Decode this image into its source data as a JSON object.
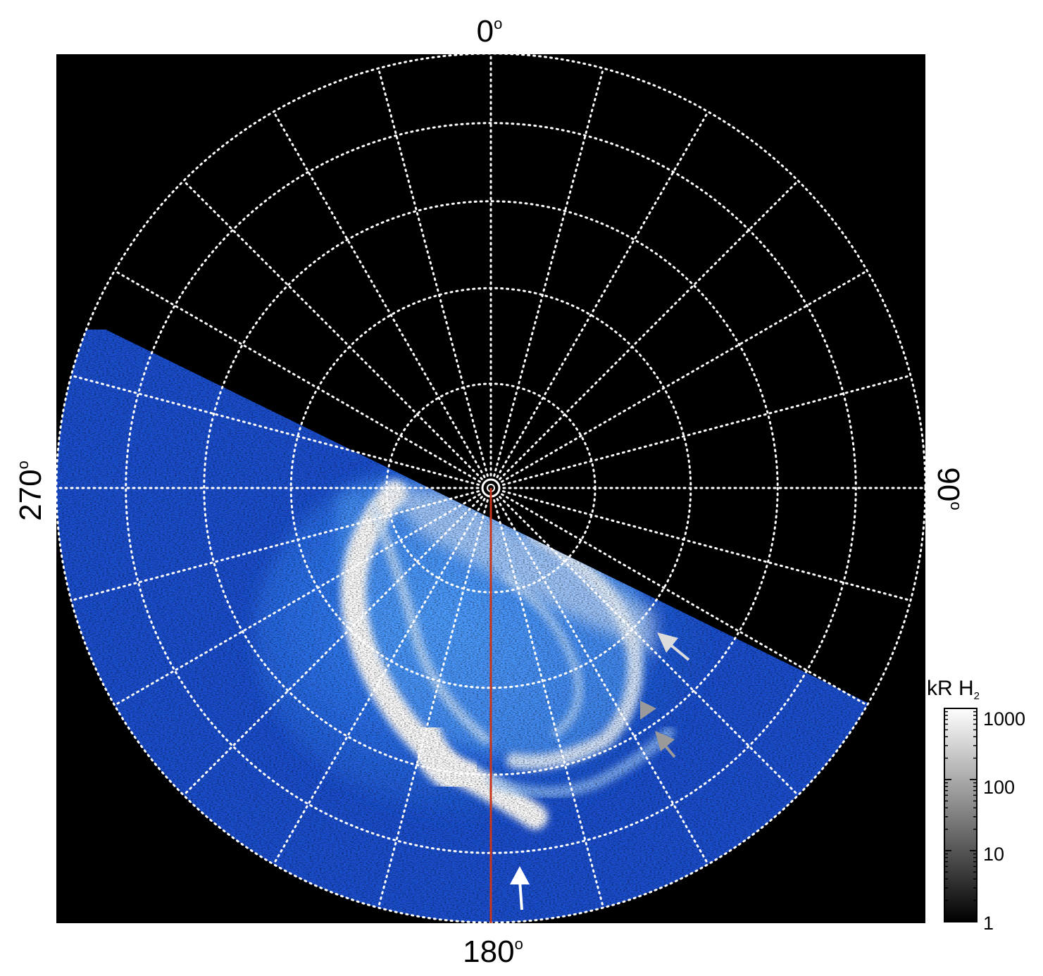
{
  "figure": {
    "labels": {
      "top": "0",
      "right": "90",
      "bottom": "180",
      "left": "270",
      "degree": "o"
    },
    "colorbar": {
      "title_main": "kR H",
      "title_sub": "2",
      "ticks": [
        "1000",
        "100",
        "10",
        "1"
      ]
    },
    "colors": {
      "background": "#000000",
      "aurora_dim": "#1a4fd6",
      "aurora_mid": "#3a8cf0",
      "aurora_bright": "#ffffff",
      "meridian": "#c8371c",
      "grid": "#ffffff",
      "arrow_white": "#ffffff",
      "arrow_gray": "#9a9a9a"
    },
    "annotations": [
      {
        "type": "arrow",
        "color": "white",
        "icon": "arrow-up-icon"
      },
      {
        "type": "arrow",
        "color": "light-gray",
        "icon": "arrow-upleft-icon"
      },
      {
        "type": "arrowhead",
        "color": "gray",
        "icon": "triangle-right-icon"
      },
      {
        "type": "arrow",
        "color": "gray",
        "icon": "arrow-upleft-icon"
      }
    ]
  }
}
